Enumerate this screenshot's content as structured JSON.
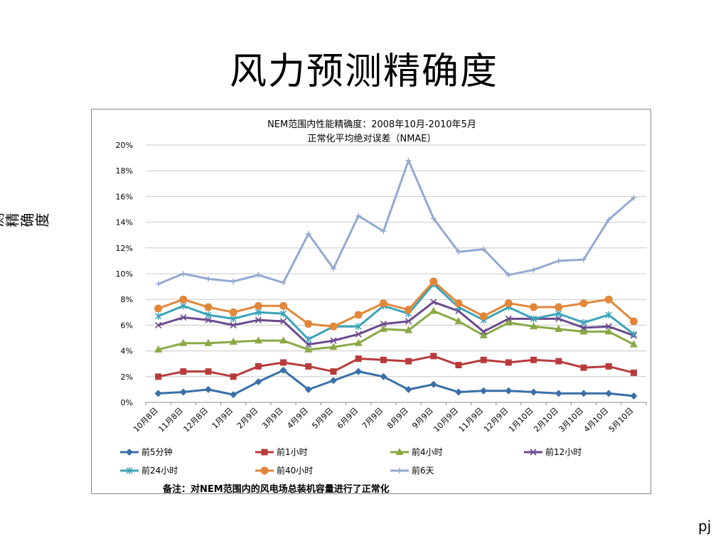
{
  "slide": {
    "title": "风力预测精确度",
    "page_tag": "pj"
  },
  "chart_text": {
    "title_line1": "NEM范围内性能精确度：2008年10月-2010年5月",
    "title_line2": "正常化平均绝对误差（NMAE）",
    "ylabel": "预测精确度",
    "footnote": "备注：对NEM范围内的风电场总装机容量进行了正常化"
  },
  "chart_data": {
    "type": "line",
    "title": "NEM范围内性能精确度：2008年10月-2010年5月 正常化平均绝对误差（NMAE）",
    "ylabel": "预测精确度",
    "xlabel": "",
    "ylim": [
      0,
      20
    ],
    "y_tick_step": 2,
    "y_unit": "%",
    "grid": true,
    "legend_position": "bottom",
    "categories": [
      "10月8日",
      "11月8日",
      "12月8日",
      "1月9日",
      "2月9日",
      "3月9日",
      "4月9日",
      "5月9日",
      "6月9日",
      "7月9日",
      "8月9日",
      "9月9日",
      "10月9日",
      "11月9日",
      "12月9日",
      "1月10日",
      "2月10日",
      "3月10日",
      "4月10日",
      "5月10日"
    ],
    "series": [
      {
        "name": "前5分钟",
        "color": "#3a6fa8",
        "marker": "diamond",
        "values": [
          0.7,
          0.8,
          1.0,
          0.6,
          1.6,
          2.5,
          1.0,
          1.7,
          2.4,
          2.0,
          1.0,
          1.4,
          0.8,
          0.9,
          0.9,
          0.8,
          0.7,
          0.7,
          0.7,
          0.5
        ]
      },
      {
        "name": "前1小时",
        "color": "#b83b3b",
        "marker": "square",
        "values": [
          2.0,
          2.4,
          2.4,
          2.0,
          2.8,
          3.1,
          2.8,
          2.4,
          3.4,
          3.3,
          3.2,
          3.6,
          2.9,
          3.3,
          3.1,
          3.3,
          3.2,
          2.7,
          2.8,
          2.3
        ]
      },
      {
        "name": "前4小时",
        "color": "#8aa946",
        "marker": "triangle",
        "values": [
          4.1,
          4.6,
          4.6,
          4.7,
          4.8,
          4.8,
          4.1,
          4.3,
          4.6,
          5.7,
          5.6,
          7.1,
          6.3,
          5.2,
          6.2,
          5.9,
          5.7,
          5.5,
          5.5,
          4.5
        ]
      },
      {
        "name": "前12小时",
        "color": "#6b4a8e",
        "marker": "x",
        "values": [
          6.0,
          6.6,
          6.4,
          6.0,
          6.4,
          6.3,
          4.5,
          4.8,
          5.3,
          6.1,
          6.3,
          7.8,
          7.1,
          5.5,
          6.5,
          6.5,
          6.5,
          5.8,
          5.9,
          5.2
        ]
      },
      {
        "name": "前24小时",
        "color": "#3aa3b8",
        "marker": "star",
        "values": [
          6.7,
          7.5,
          6.8,
          6.5,
          7.0,
          6.9,
          4.9,
          5.9,
          5.9,
          7.5,
          6.9,
          9.2,
          7.4,
          6.4,
          7.4,
          6.5,
          6.9,
          6.2,
          6.8,
          5.3
        ]
      },
      {
        "name": "前40小时",
        "color": "#e2873a",
        "marker": "circle",
        "values": [
          7.3,
          8.0,
          7.4,
          7.0,
          7.5,
          7.5,
          6.1,
          5.9,
          6.8,
          7.7,
          7.2,
          9.4,
          7.7,
          6.7,
          7.7,
          7.4,
          7.4,
          7.7,
          8.0,
          6.3
        ]
      },
      {
        "name": "前6天",
        "color": "#93a9d2",
        "marker": "plus",
        "values": [
          9.2,
          10.0,
          9.6,
          9.4,
          9.9,
          9.3,
          13.1,
          10.4,
          14.5,
          13.3,
          18.8,
          14.3,
          11.7,
          11.9,
          9.9,
          10.3,
          11.0,
          11.1,
          14.2,
          15.9
        ]
      }
    ]
  }
}
